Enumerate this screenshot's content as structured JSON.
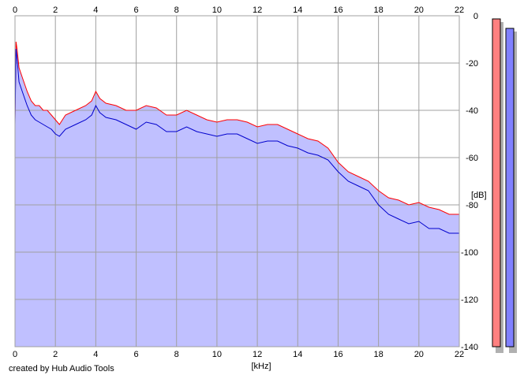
{
  "credit": "created by Hub Audio Tools",
  "colors": {
    "background": "#ffffff",
    "plot_fill": "#c0c0ff",
    "channel_red": "#ff0000",
    "channel_blue": "#0000cc",
    "grid": "#a0a0a0",
    "meter_red": "#ff8080",
    "meter_blue": "#8080ff",
    "meter_shadow": "#b0b0b0"
  },
  "chart_data": {
    "type": "line",
    "title": "",
    "xlabel": "[kHz]",
    "ylabel": "[dB]",
    "xlim": [
      0,
      22
    ],
    "ylim": [
      -140,
      0
    ],
    "grid": true,
    "x_ticks": [
      0,
      2,
      4,
      6,
      8,
      10,
      12,
      14,
      16,
      18,
      20,
      22
    ],
    "x_tick_labels": [
      "0",
      "2",
      "4",
      "6",
      "8",
      "10",
      "12",
      "14",
      "16",
      "18",
      "20",
      "22"
    ],
    "y_ticks": [
      0,
      -20,
      -40,
      -60,
      -80,
      -100,
      -120,
      -140
    ],
    "y_tick_labels": [
      "0",
      "-20",
      "-40",
      "-60",
      "-80",
      "-100",
      "-120",
      "-140"
    ],
    "fill_to": -140,
    "series": [
      {
        "color": "#ff0000",
        "x": [
          0,
          0.05,
          0.1,
          0.2,
          0.4,
          0.6,
          0.8,
          1,
          1.2,
          1.4,
          1.6,
          1.8,
          2,
          2.2,
          2.5,
          3,
          3.5,
          3.8,
          4,
          4.2,
          4.5,
          5,
          5.5,
          6,
          6.5,
          7,
          7.5,
          8,
          8.5,
          9,
          9.5,
          10,
          10.5,
          11,
          11.5,
          12,
          12.5,
          13,
          13.5,
          14,
          14.5,
          15,
          15.5,
          16,
          16.5,
          17,
          17.5,
          18,
          18.5,
          19,
          19.5,
          20,
          20.5,
          21,
          21.5,
          22
        ],
        "values": [
          -44,
          -11,
          -14,
          -22,
          -27,
          -32,
          -36,
          -38,
          -38,
          -40,
          -40,
          -42,
          -44,
          -46,
          -42,
          -40,
          -38,
          -36,
          -32,
          -35,
          -37,
          -38,
          -40,
          -40,
          -38,
          -39,
          -42,
          -42,
          -40,
          -42,
          -44,
          -45,
          -44,
          -44,
          -45,
          -47,
          -46,
          -46,
          -48,
          -50,
          -52,
          -53,
          -56,
          -62,
          -66,
          -68,
          -70,
          -74,
          -77,
          -78,
          -80,
          -79,
          -81,
          -82,
          -84,
          -84
        ]
      },
      {
        "color": "#0000cc",
        "x": [
          0,
          0.05,
          0.1,
          0.2,
          0.4,
          0.6,
          0.8,
          1,
          1.2,
          1.4,
          1.6,
          1.8,
          2,
          2.2,
          2.5,
          3,
          3.5,
          3.8,
          4,
          4.2,
          4.5,
          5,
          5.5,
          6,
          6.5,
          7,
          7.5,
          8,
          8.5,
          9,
          9.5,
          10,
          10.5,
          11,
          11.5,
          12,
          12.5,
          13,
          13.5,
          14,
          14.5,
          15,
          15.5,
          16,
          16.5,
          17,
          17.5,
          18,
          18.5,
          19,
          19.5,
          20,
          20.5,
          21,
          21.5,
          22
        ],
        "values": [
          -46,
          -14,
          -18,
          -28,
          -33,
          -38,
          -42,
          -44,
          -45,
          -46,
          -47,
          -48,
          -50,
          -51,
          -48,
          -46,
          -44,
          -42,
          -38,
          -41,
          -43,
          -44,
          -46,
          -48,
          -45,
          -46,
          -49,
          -49,
          -47,
          -49,
          -50,
          -51,
          -50,
          -50,
          -52,
          -54,
          -53,
          -53,
          -55,
          -56,
          -58,
          -59,
          -61,
          -66,
          -70,
          -72,
          -74,
          -80,
          -84,
          -86,
          -88,
          -87,
          -90,
          -90,
          -92,
          -92
        ]
      }
    ]
  }
}
